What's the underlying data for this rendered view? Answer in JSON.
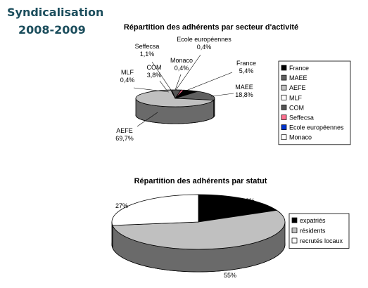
{
  "page": {
    "title_line1": "Syndicalisation",
    "title_line2": "2008-2009"
  },
  "colors": {
    "title_teal": "#1b4d5c",
    "black": "#000000",
    "dark_gray": "#5f5f5f",
    "light_gray": "#c0c0c0",
    "white": "#ffffff",
    "com_gray": "#555555",
    "pink": "#ff6f8f",
    "blue": "#0033cc"
  },
  "chart_data": [
    {
      "type": "pie",
      "title": "Répartition des adhérents par secteur d'activité",
      "slices": [
        {
          "name": "France",
          "value": 5.4,
          "label": "France\n5,4%",
          "color": "#000000"
        },
        {
          "name": "MAEE",
          "value": 18.8,
          "label": "MAEE\n18,8%",
          "color": "#5f5f5f"
        },
        {
          "name": "AEFE",
          "value": 69.7,
          "label": "AEFE\n69,7%",
          "color": "#c0c0c0"
        },
        {
          "name": "MLF",
          "value": 0.4,
          "label": "MLF\n0,4%",
          "color": "#ffffff"
        },
        {
          "name": "COM",
          "value": 3.8,
          "label": "COM\n3,8%",
          "color": "#555555"
        },
        {
          "name": "Seffecsa",
          "value": 1.1,
          "label": "Seffecsa\n1,1%",
          "color": "#ff6f8f"
        },
        {
          "name": "Ecole européennes",
          "value": 0.4,
          "label": "Ecole européennes\n0,4%",
          "color": "#0033cc"
        },
        {
          "name": "Monaco",
          "value": 0.4,
          "label": "Monaco\n0,4%",
          "color": "#ffffff"
        }
      ],
      "legend": [
        "France",
        "MAEE",
        "AEFE",
        "MLF",
        "COM",
        "Seffecsa",
        "Ecole européennes",
        "Monaco"
      ],
      "legend_placement": "right"
    },
    {
      "type": "pie",
      "title": "Répartition des adhérents par statut",
      "slices": [
        {
          "name": "expatriés",
          "value": 18,
          "label": "18%",
          "color": "#000000"
        },
        {
          "name": "résidents",
          "value": 55,
          "label": "55%",
          "color": "#c0c0c0"
        },
        {
          "name": "recrutés locaux",
          "value": 27,
          "label": "27%",
          "color": "#ffffff"
        }
      ],
      "legend": [
        "expatriés",
        "résidents",
        "recrutés locaux"
      ],
      "legend_placement": "right"
    }
  ]
}
